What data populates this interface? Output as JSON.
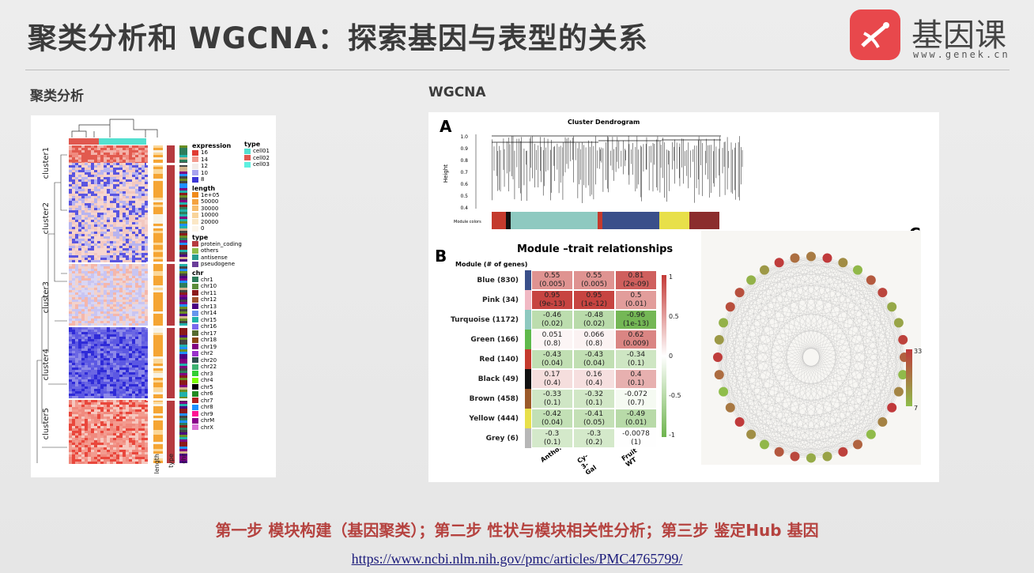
{
  "title": "聚类分析和 WGCNA：探索基因与表型的关系",
  "logo": {
    "cn": "基因课",
    "url": "www.genek.cn",
    "colors": {
      "brand": "#e8484c"
    }
  },
  "left": {
    "subtitle": "聚类分析",
    "clusters": [
      "cluster1",
      "cluster2",
      "cluster3",
      "cluster4",
      "cluster5"
    ],
    "bottom_labels": [
      "length",
      "type",
      "chr"
    ],
    "legend": {
      "expression_title": "expression",
      "expression": [
        "16",
        "14",
        "12",
        "10",
        "8"
      ],
      "length_title": "length",
      "length": [
        "1e+05",
        "50000",
        "30000",
        "10000",
        "20000",
        "0"
      ],
      "type_title": "type",
      "type": [
        "protein_coding",
        "others",
        "antisense",
        "pseudogene"
      ],
      "chr_title": "chr",
      "chr": [
        "chr1",
        "chr10",
        "chr11",
        "chr12",
        "chr13",
        "chr14",
        "chr15",
        "chr16",
        "chr17",
        "chr18",
        "chr19",
        "chr2",
        "chr20",
        "chr22",
        "chr3",
        "chr4",
        "chr5",
        "chr6",
        "chr7",
        "chr8",
        "chr9",
        "chrM",
        "chrX"
      ],
      "cell_title": "type",
      "cells": [
        "cell01",
        "cell02",
        "cell03"
      ]
    }
  },
  "right": {
    "subtitle": "WGCNA",
    "panelA": {
      "letter": "A",
      "title": "Cluster Dendrogram",
      "ylabel": "Height",
      "colors_label": "Module colors",
      "yticks": [
        "1.0",
        "0.9",
        "0.8",
        "0.7",
        "0.6",
        "0.5",
        "0.4"
      ]
    },
    "panelB": {
      "letter": "B",
      "title": "Module –trait relationships",
      "header": "Module (# of genes)",
      "modules": [
        "Blue (830)",
        "Pink (34)",
        "Turquoise (1172)",
        "Green (166)",
        "Red (140)",
        "Black (49)",
        "Brown (458)",
        "Yellow (444)",
        "Grey (6)"
      ],
      "traits": [
        "Antho.",
        "Cy-3-Gal",
        "Fruit WT"
      ],
      "values": [
        [
          "0.55",
          "0.55",
          "0.81"
        ],
        [
          "0.95",
          "0.95",
          "0.5"
        ],
        [
          "-0.46",
          "-0.48",
          "-0.96"
        ],
        [
          "0.051",
          "0.066",
          "0.62"
        ],
        [
          "-0.43",
          "-0.43",
          "-0.34"
        ],
        [
          "0.17",
          "0.16",
          "0.4"
        ],
        [
          "-0.33",
          "-0.32",
          "-0.072"
        ],
        [
          "-0.42",
          "-0.41",
          "-0.49"
        ],
        [
          "-0.3",
          "-0.3",
          "-0.0078"
        ]
      ],
      "pvalues": [
        [
          "(0.005)",
          "(0.005)",
          "(2e-09)"
        ],
        [
          "(9e-13)",
          "(1e-12)",
          "(0.01)"
        ],
        [
          "(0.02)",
          "(0.02)",
          "(1e-13)"
        ],
        [
          "(0.8)",
          "(0.8)",
          "(0.009)"
        ],
        [
          "(0.04)",
          "(0.04)",
          "(0.1)"
        ],
        [
          "(0.4)",
          "(0.4)",
          "(0.1)"
        ],
        [
          "(0.1)",
          "(0.1)",
          "(0.7)"
        ],
        [
          "(0.04)",
          "(0.05)",
          "(0.01)"
        ],
        [
          "(0.1)",
          "(0.2)",
          "(1)"
        ]
      ],
      "scale": [
        "1",
        "0.5",
        "0",
        "-0.5",
        "-1"
      ]
    },
    "panelC": {
      "letter": "C",
      "scale_top": "33",
      "scale_bottom": "7"
    }
  },
  "footer": {
    "steps": "第一步 模块构建（基因聚类）；第二步 性状与模块相关性分析；第三步 鉴定Hub 基因",
    "link": "https://www.ncbi.nlm.nih.gov/pmc/articles/PMC4765799/"
  }
}
